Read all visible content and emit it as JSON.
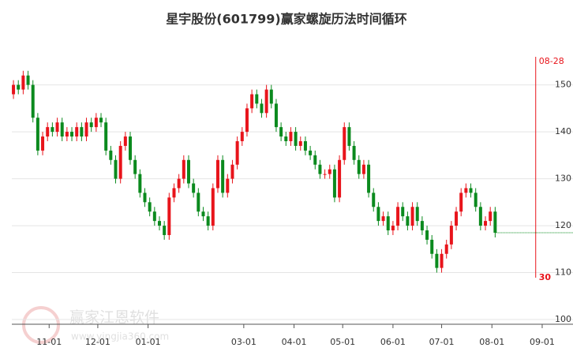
{
  "chart_data": {
    "type": "candlestick",
    "title": "星宇股份(601799)赢家螺旋历法时间循环",
    "watermark": "赢家江恩软件",
    "watermark_url": "www.yingjia360.com",
    "up_color": "#e8141b",
    "down_color": "#0b8a1e",
    "last_line_color": "#0b8a1e",
    "grid": true,
    "x": [
      9,
      12,
      15,
      18,
      21,
      24,
      27,
      30,
      33,
      36,
      39,
      42,
      45,
      48,
      51,
      54,
      57,
      60,
      63,
      66,
      69,
      72,
      75,
      78,
      81,
      84,
      87,
      90,
      93,
      96,
      99,
      102,
      105,
      108,
      111,
      114,
      117,
      120,
      123,
      126,
      129,
      132,
      135,
      138,
      141,
      144,
      147,
      150,
      153,
      156,
      159,
      162,
      165,
      168,
      171,
      174,
      177,
      180,
      183,
      186,
      189,
      192,
      195,
      198,
      201,
      204,
      207,
      210,
      213,
      216,
      219,
      222,
      225,
      228,
      231,
      234,
      237,
      240,
      243,
      246,
      249,
      252,
      255,
      258,
      261,
      264,
      267,
      270,
      273,
      276,
      279,
      282,
      285,
      288,
      291,
      294,
      297,
      300,
      303,
      306
    ],
    "open": [
      148,
      150,
      149,
      152,
      150,
      143,
      136,
      139,
      141,
      140,
      142,
      139,
      140,
      139,
      141,
      139,
      142,
      141,
      143,
      142,
      136,
      134,
      130,
      137,
      139,
      134,
      131,
      127,
      125,
      123,
      121,
      120,
      118,
      126,
      128,
      130,
      134,
      129,
      127,
      123,
      122,
      120,
      128,
      134,
      127,
      130,
      133,
      138,
      140,
      145,
      148,
      146,
      144,
      149,
      146,
      141,
      139,
      138,
      140,
      137,
      138,
      136,
      135,
      133,
      131,
      131,
      132,
      126,
      134,
      141,
      137,
      134,
      131,
      133,
      127,
      124,
      121,
      122,
      119,
      120,
      124,
      122,
      120,
      124,
      121,
      119,
      117,
      114,
      111,
      114,
      116,
      120,
      123,
      127,
      128,
      127,
      124,
      120,
      121,
      123
    ],
    "high": [
      151,
      151,
      153,
      153,
      151,
      144,
      140,
      142,
      142,
      143,
      143,
      141,
      141,
      142,
      142,
      143,
      143,
      144,
      144,
      143,
      137,
      135,
      138,
      140,
      140,
      135,
      132,
      128,
      126,
      124,
      122,
      121,
      127,
      129,
      131,
      135,
      135,
      130,
      128,
      124,
      123,
      129,
      135,
      135,
      131,
      134,
      139,
      141,
      146,
      149,
      149,
      147,
      150,
      150,
      147,
      142,
      140,
      141,
      141,
      139,
      139,
      137,
      136,
      134,
      132,
      133,
      133,
      135,
      142,
      142,
      138,
      135,
      134,
      134,
      128,
      125,
      123,
      123,
      121,
      125,
      125,
      123,
      125,
      125,
      122,
      120,
      118,
      115,
      115,
      117,
      121,
      124,
      128,
      129,
      129,
      128,
      125,
      122,
      124,
      124
    ],
    "low": [
      147,
      148,
      148,
      149,
      142,
      135,
      135,
      138,
      139,
      139,
      138,
      138,
      138,
      138,
      138,
      138,
      140,
      140,
      141,
      135,
      133,
      129,
      129,
      136,
      133,
      130,
      126,
      124,
      122,
      120,
      119,
      117,
      117,
      125,
      127,
      129,
      128,
      126,
      122,
      121,
      119,
      119,
      127,
      126,
      126,
      129,
      132,
      137,
      139,
      144,
      145,
      143,
      143,
      145,
      140,
      138,
      137,
      137,
      136,
      136,
      135,
      134,
      132,
      130,
      130,
      130,
      125,
      125,
      133,
      136,
      133,
      130,
      130,
      126,
      123,
      120,
      120,
      118,
      118,
      119,
      121,
      119,
      119,
      120,
      118,
      116,
      113,
      110,
      110,
      113,
      115,
      119,
      122,
      126,
      126,
      123,
      119,
      119,
      120,
      117.5
    ],
    "close": [
      150,
      149,
      152,
      150,
      143,
      136,
      139,
      141,
      140,
      142,
      139,
      140,
      139,
      141,
      139,
      142,
      141,
      143,
      142,
      136,
      134,
      130,
      137,
      139,
      134,
      131,
      127,
      125,
      123,
      121,
      120,
      118,
      126,
      128,
      130,
      134,
      129,
      127,
      123,
      122,
      120,
      128,
      134,
      127,
      130,
      133,
      138,
      140,
      145,
      148,
      146,
      144,
      149,
      146,
      141,
      139,
      138,
      140,
      137,
      138,
      136,
      135,
      133,
      131,
      131,
      132,
      126,
      134,
      141,
      137,
      134,
      131,
      133,
      127,
      124,
      121,
      122,
      119,
      120,
      124,
      122,
      120,
      124,
      121,
      119,
      117,
      114,
      111,
      114,
      116,
      120,
      123,
      127,
      128,
      127,
      124,
      120,
      121,
      123,
      118.5
    ],
    "xlim": [
      8,
      354
    ],
    "xticks": [
      {
        "value": 31,
        "label": "11-01"
      },
      {
        "value": 61,
        "label": "12-01"
      },
      {
        "value": 92,
        "label": "01-01"
      },
      {
        "value": 151,
        "label": "03-01"
      },
      {
        "value": 182,
        "label": "04-01"
      },
      {
        "value": 212,
        "label": "05-01"
      },
      {
        "value": 243,
        "label": "06-01"
      },
      {
        "value": 273,
        "label": "07-01"
      },
      {
        "value": 304,
        "label": "08-01"
      },
      {
        "value": 335,
        "label": "09-01"
      }
    ],
    "ylim": [
      99,
      158
    ],
    "yticks": [
      100,
      110,
      120,
      130,
      140,
      150
    ],
    "cycle_line": {
      "x": {
        "value": 331,
        "label": "08-28"
      },
      "count": 30,
      "color": "#e8141b"
    }
  }
}
